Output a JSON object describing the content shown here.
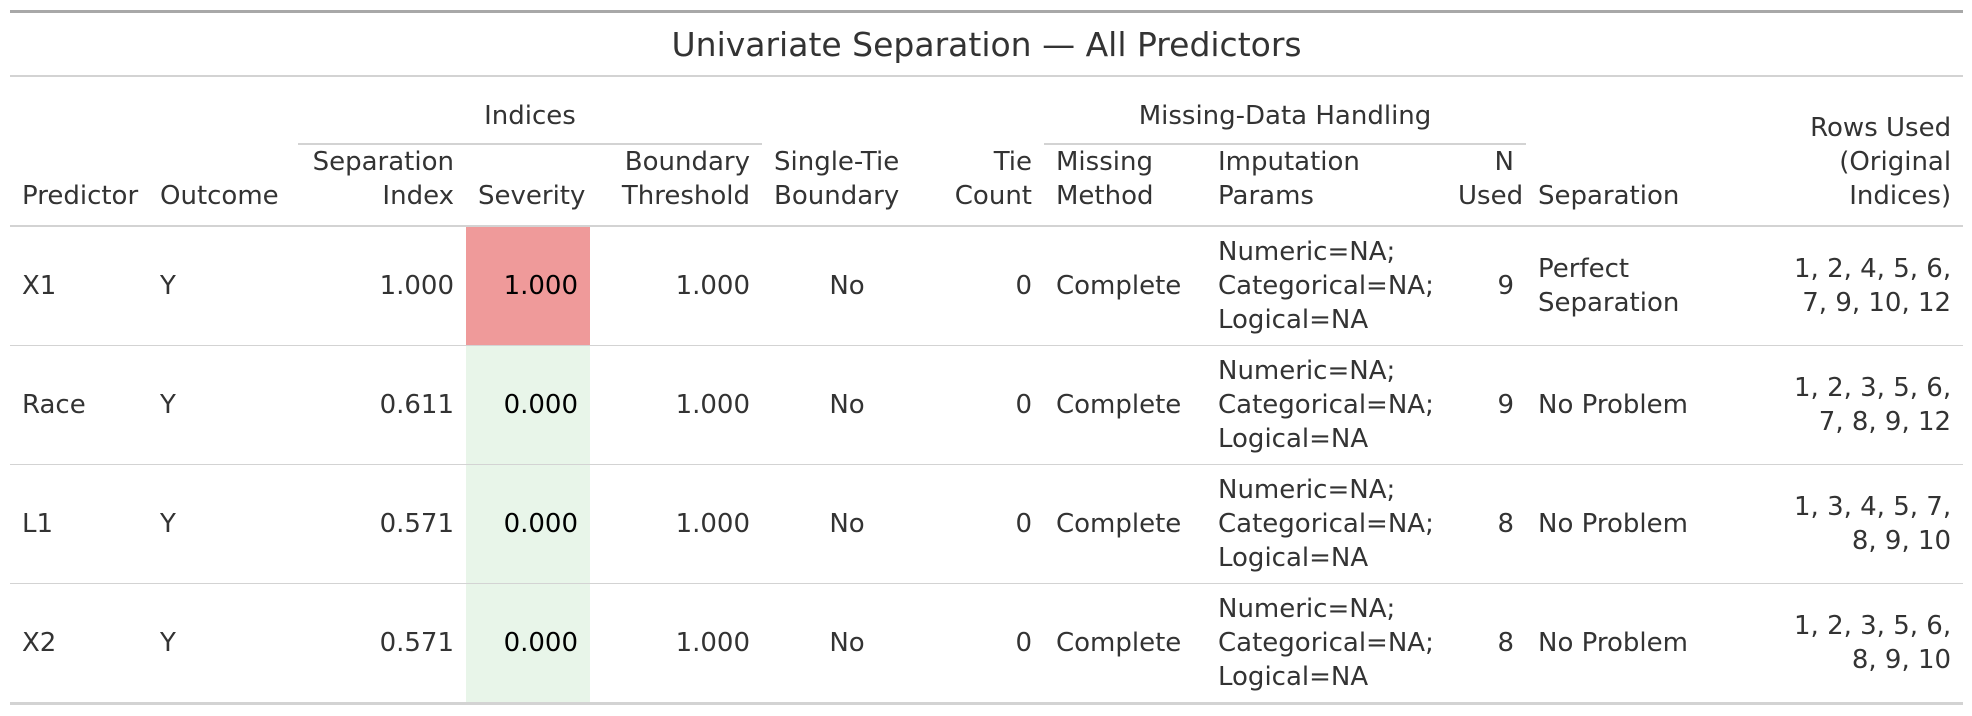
{
  "title": "Univariate Separation — All Predictors",
  "spanners": {
    "indices": "Indices",
    "missing": "Missing-Data Handling"
  },
  "headers": {
    "predictor": "Predictor",
    "outcome": "Outcome",
    "sep_index_1": "Separation",
    "sep_index_2": "Index",
    "severity": "Severity",
    "boundary_1": "Boundary",
    "boundary_2": "Threshold",
    "single_tie_1": "Single-Tie",
    "single_tie_2": "Boundary",
    "tie_count_1": "Tie",
    "tie_count_2": "Count",
    "missing_method_1": "Missing",
    "missing_method_2": "Method",
    "imputation": "Imputation Params",
    "n_used_1": "N",
    "n_used_2": "Used",
    "separation": "Separation",
    "rows_used_1": "Rows Used",
    "rows_used_2": "(Original",
    "rows_used_3": "Indices)"
  },
  "severity_colors": {
    "high": "#EF9A9A",
    "low": "#E8F5E9"
  },
  "rows": [
    {
      "predictor": "X1",
      "outcome": "Y",
      "sep_index": "1.000",
      "severity": "1.000",
      "severity_color": "#EF9A9A",
      "boundary": "1.000",
      "single_tie": "No",
      "tie_count": "0",
      "method": "Complete",
      "imp_1": "Numeric=NA;",
      "imp_2": "Categorical=NA;",
      "imp_3": "Logical=NA",
      "n_used": "9",
      "separation_1": "Perfect",
      "separation_2": "Separation",
      "rows_1": "1, 2, 4, 5, 6,",
      "rows_2": "7, 9, 10, 12"
    },
    {
      "predictor": "Race",
      "outcome": "Y",
      "sep_index": "0.611",
      "severity": "0.000",
      "severity_color": "#E8F5E9",
      "boundary": "1.000",
      "single_tie": "No",
      "tie_count": "0",
      "method": "Complete",
      "imp_1": "Numeric=NA;",
      "imp_2": "Categorical=NA;",
      "imp_3": "Logical=NA",
      "n_used": "9",
      "separation_1": "No Problem",
      "separation_2": "",
      "rows_1": "1, 2, 3, 5, 6,",
      "rows_2": "7, 8, 9, 12"
    },
    {
      "predictor": "L1",
      "outcome": "Y",
      "sep_index": "0.571",
      "severity": "0.000",
      "severity_color": "#E8F5E9",
      "boundary": "1.000",
      "single_tie": "No",
      "tie_count": "0",
      "method": "Complete",
      "imp_1": "Numeric=NA;",
      "imp_2": "Categorical=NA;",
      "imp_3": "Logical=NA",
      "n_used": "8",
      "separation_1": "No Problem",
      "separation_2": "",
      "rows_1": "1, 3, 4, 5, 7,",
      "rows_2": "8, 9, 10"
    },
    {
      "predictor": "X2",
      "outcome": "Y",
      "sep_index": "0.571",
      "severity": "0.000",
      "severity_color": "#E8F5E9",
      "boundary": "1.000",
      "single_tie": "No",
      "tie_count": "0",
      "method": "Complete",
      "imp_1": "Numeric=NA;",
      "imp_2": "Categorical=NA;",
      "imp_3": "Logical=NA",
      "n_used": "8",
      "separation_1": "No Problem",
      "separation_2": "",
      "rows_1": "1, 2, 3, 5, 6,",
      "rows_2": "8, 9, 10"
    }
  ]
}
